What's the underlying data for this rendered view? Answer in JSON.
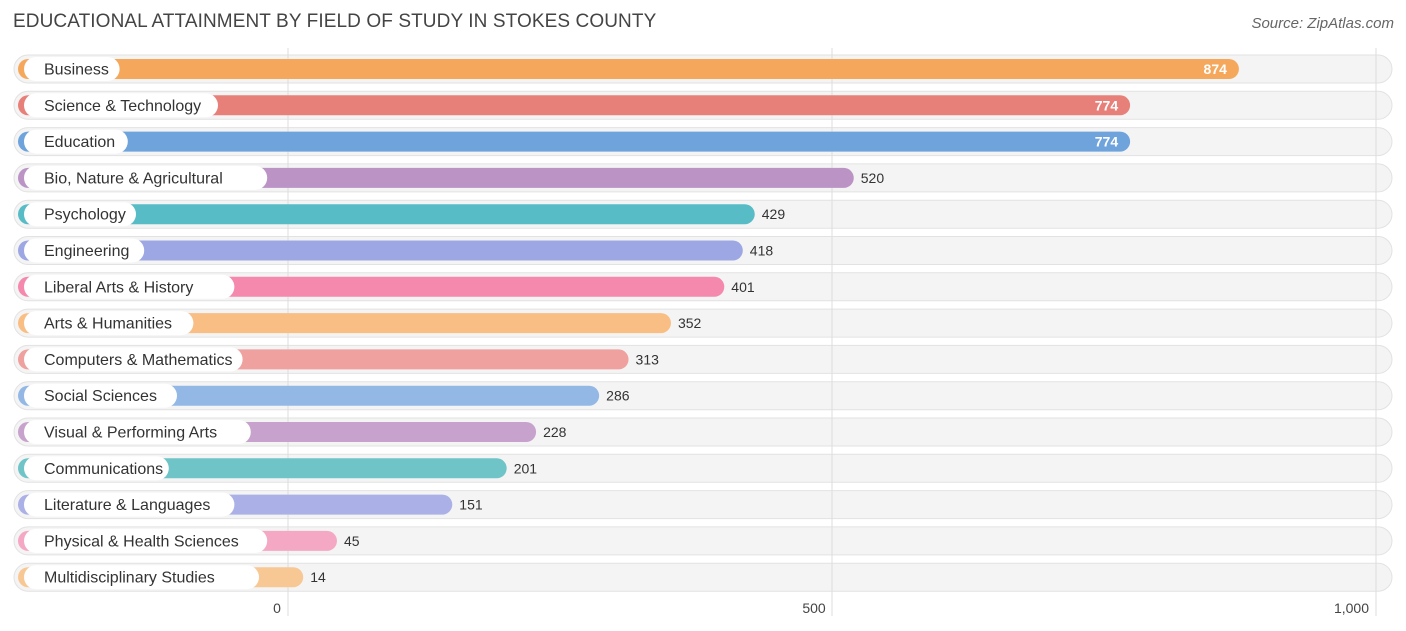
{
  "header": {
    "title": "EDUCATIONAL ATTAINMENT BY FIELD OF STUDY IN STOKES COUNTY",
    "source": "Source: ZipAtlas.com"
  },
  "chart_data": {
    "type": "bar",
    "orientation": "horizontal",
    "title": "EDUCATIONAL ATTAINMENT BY FIELD OF STUDY IN STOKES COUNTY",
    "categories": [
      "Business",
      "Science & Technology",
      "Education",
      "Bio, Nature & Agricultural",
      "Psychology",
      "Engineering",
      "Liberal Arts & History",
      "Arts & Humanities",
      "Computers & Mathematics",
      "Social Sciences",
      "Visual & Performing Arts",
      "Communications",
      "Literature & Languages",
      "Physical & Health Sciences",
      "Multidisciplinary Studies"
    ],
    "values": [
      874,
      774,
      774,
      520,
      429,
      418,
      401,
      352,
      313,
      286,
      228,
      201,
      151,
      45,
      14
    ],
    "value_labels": [
      "874",
      "774",
      "774",
      "520",
      "429",
      "418",
      "401",
      "352",
      "313",
      "286",
      "228",
      "201",
      "151",
      "45",
      "14"
    ],
    "colors": [
      "#f5a85c",
      "#e8807a",
      "#6fa3dc",
      "#bb93c4",
      "#57bcc6",
      "#9da7e3",
      "#f488ad",
      "#f8be84",
      "#eea19e",
      "#93b8e6",
      "#c7a2cc",
      "#6ec4c7",
      "#abb1e6",
      "#f5a8c4",
      "#f8c894"
    ],
    "xlim": [
      0,
      1000
    ],
    "xticks": [
      0,
      500,
      1000
    ],
    "xtick_labels": [
      "0",
      "500",
      "1,000"
    ],
    "xlabel": "",
    "ylabel": "",
    "grid": true
  }
}
